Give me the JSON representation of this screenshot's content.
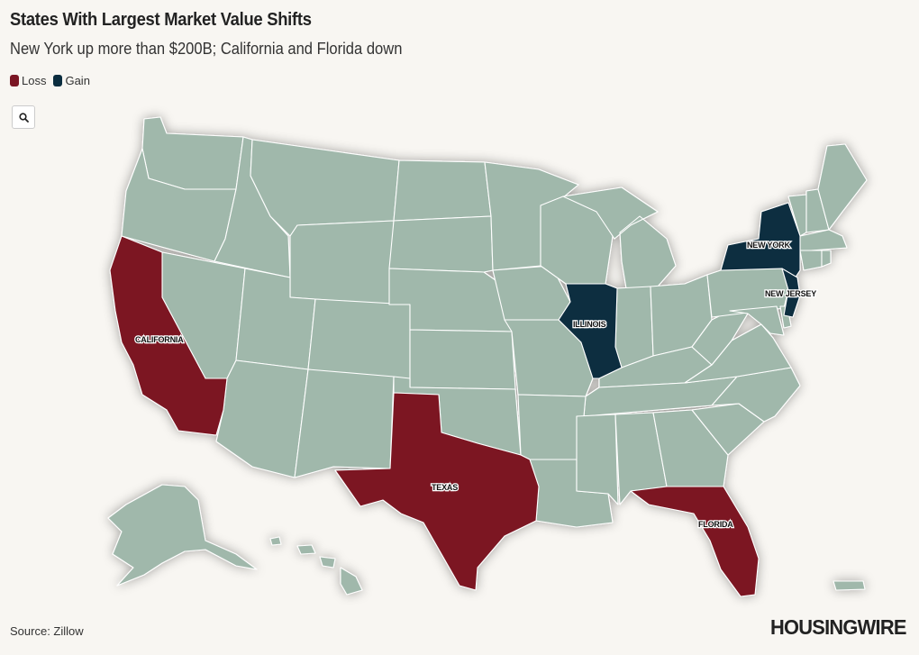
{
  "header": {
    "title": "States With Largest Market Value Shifts",
    "subtitle": "New York up more than $200B; California and Florida down"
  },
  "legend": {
    "items": [
      {
        "label": "Loss",
        "color": "#7b1624"
      },
      {
        "label": "Gain",
        "color": "#0b2d3f"
      }
    ]
  },
  "zoom_button": {
    "icon": "search-icon"
  },
  "map": {
    "base_color": "#a0b8ab",
    "highlighted_states": [
      {
        "name": "CALIFORNIA",
        "category": "Loss"
      },
      {
        "name": "TEXAS",
        "category": "Loss"
      },
      {
        "name": "FLORIDA",
        "category": "Loss"
      },
      {
        "name": "NEW YORK",
        "category": "Gain"
      },
      {
        "name": "ILLINOIS",
        "category": "Gain"
      },
      {
        "name": "NEW JERSEY",
        "category": "Gain"
      }
    ]
  },
  "footer": {
    "source": "Source: Zillow",
    "brand": "HOUSINGWIRE"
  }
}
